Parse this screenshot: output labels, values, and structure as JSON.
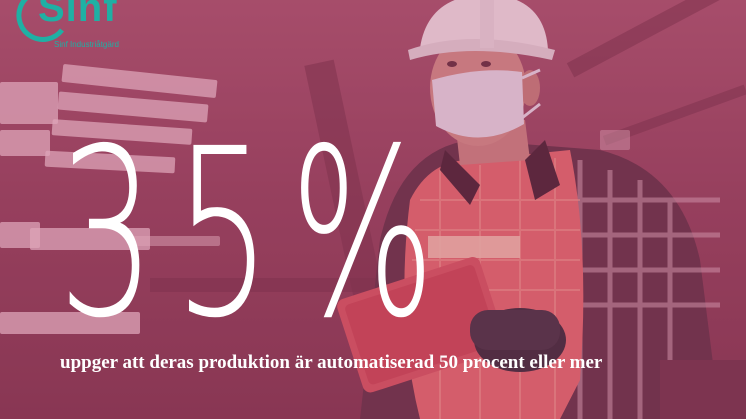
{
  "logo": {
    "name": "Sinf",
    "tagline": "Sinf Industriåtgärd",
    "color": "#1fb0a4"
  },
  "headline": {
    "number": "35%",
    "caption": "uppger att deras produktion är automatiserad 50 procent eller mer"
  },
  "colors": {
    "overlay": "#8e3c58",
    "text": "#ffffff"
  },
  "image": {
    "subject": "worker-in-hard-hat-and-mask-holding-tablet"
  }
}
